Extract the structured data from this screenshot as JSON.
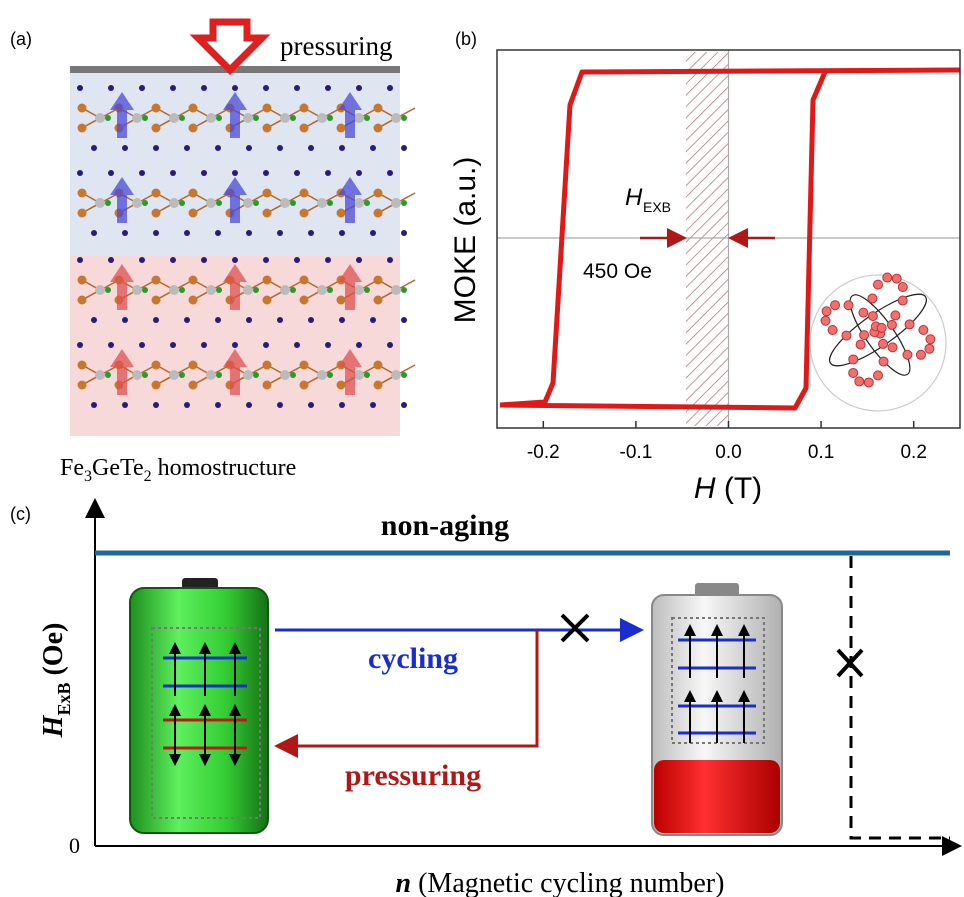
{
  "panel_a": {
    "label": "(a)",
    "arrow_label": "pressuring",
    "caption": [
      "Fe",
      "3",
      "GeTe",
      "2",
      " homostructure"
    ]
  },
  "panel_b": {
    "label": "(b)",
    "y_label": "MOKE (a.u.)",
    "x_label": {
      "symbol": "H",
      "unit": "(T)"
    },
    "xlim": [
      -0.25,
      0.25
    ],
    "xticks": [
      -0.2,
      -0.1,
      {
        "value": 0,
        "label": "0.0"
      },
      0.1,
      0.2
    ],
    "annotation": {
      "symbol": "H",
      "subscript": "EXB",
      "value": "450 Oe"
    }
  },
  "panel_c": {
    "label": "(c)",
    "y_label": {
      "symbol": "H",
      "subscript": "ExB",
      "unit": " (Oe)"
    },
    "y_origin": 0,
    "top_label": "non-aging",
    "forward_label": "cycling",
    "backward_label": "pressuring",
    "x_label": {
      "symbol": "n",
      "text": " (Magnetic cycling number)"
    }
  }
}
